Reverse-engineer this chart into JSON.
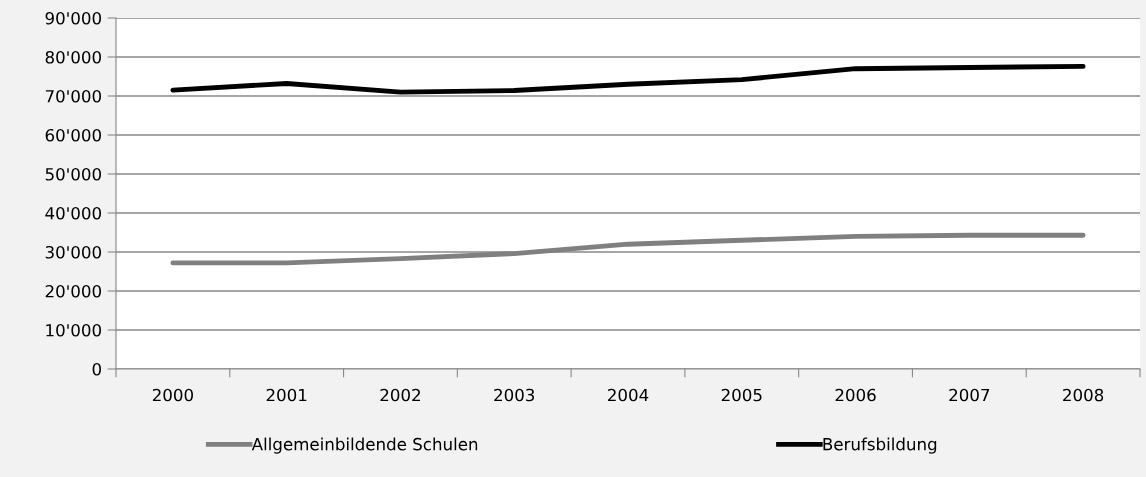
{
  "chart_data": {
    "type": "line",
    "categories": [
      "2000",
      "2001",
      "2002",
      "2003",
      "2004",
      "2005",
      "2006",
      "2007",
      "2008"
    ],
    "series": [
      {
        "name": "Allgemeinbildende Schulen",
        "color": "#808080",
        "values": [
          27200,
          27200,
          28300,
          29600,
          32000,
          33000,
          34000,
          34300,
          34300
        ]
      },
      {
        "name": "Berufsbildung",
        "color": "#000000",
        "values": [
          71500,
          73200,
          71000,
          71400,
          73000,
          74200,
          77000,
          77300,
          77600
        ]
      }
    ],
    "ylim": [
      0,
      90000
    ],
    "yticks": [
      {
        "value": 0,
        "label": "0"
      },
      {
        "value": 10000,
        "label": "10'000"
      },
      {
        "value": 20000,
        "label": "20'000"
      },
      {
        "value": 30000,
        "label": "30'000"
      },
      {
        "value": 40000,
        "label": "40'000"
      },
      {
        "value": 50000,
        "label": "50'000"
      },
      {
        "value": 60000,
        "label": "60'000"
      },
      {
        "value": 70000,
        "label": "70'000"
      },
      {
        "value": 80000,
        "label": "80'000"
      },
      {
        "value": 90000,
        "label": "90'000"
      }
    ],
    "grid": "y",
    "legend": "bottom",
    "marker": "none",
    "line_style": "solid"
  }
}
